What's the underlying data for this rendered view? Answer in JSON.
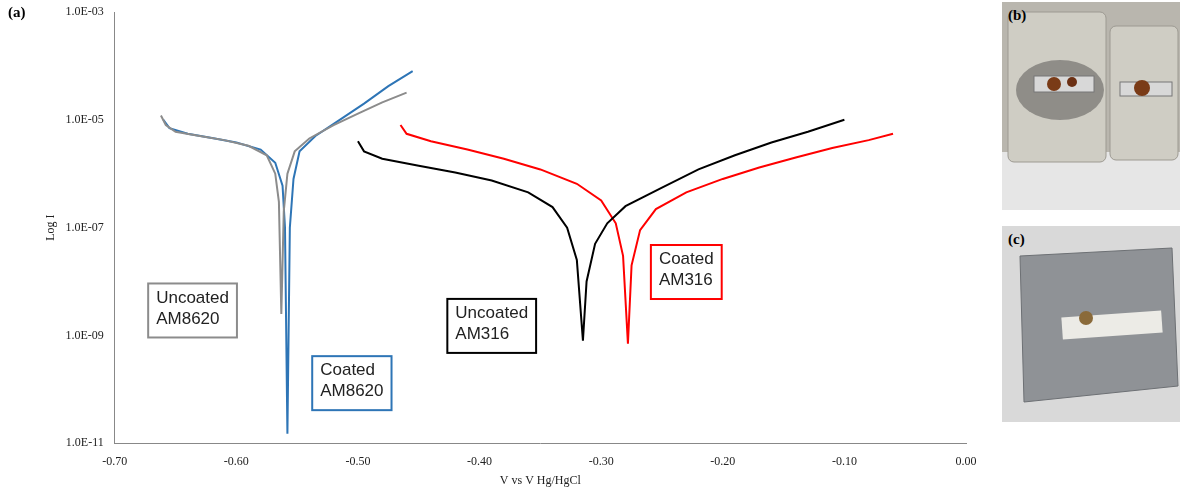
{
  "chart_data": {
    "type": "line",
    "panel_label": "(a)",
    "x_label": "V vs V Hg/HgCl",
    "y_label": "Log I",
    "xlim": [
      -0.7,
      0
    ],
    "xticks": [
      {
        "value": -0.7,
        "label": "-0.70"
      },
      {
        "value": -0.6,
        "label": "-0.60"
      },
      {
        "value": -0.5,
        "label": "-0.50"
      },
      {
        "value": -0.4,
        "label": "-0.40"
      },
      {
        "value": -0.3,
        "label": "-0.30"
      },
      {
        "value": -0.2,
        "label": "-0.20"
      },
      {
        "value": -0.1,
        "label": "-0.10"
      },
      {
        "value": 0,
        "label": "0.00"
      }
    ],
    "ylim": [
      1e-11,
      0.001
    ],
    "yticks": [
      {
        "value": 1e-11,
        "label": "1.0E-11"
      },
      {
        "value": 1e-09,
        "label": "1.0E-09"
      },
      {
        "value": 1e-07,
        "label": "1.0E-07"
      },
      {
        "value": 1e-05,
        "label": "1.0E-05"
      },
      {
        "value": 0.001,
        "label": "1.0E-03"
      }
    ],
    "log": "y",
    "grid": false,
    "series": [
      {
        "name": "Uncoated AM8620",
        "color": "#8c8c8c",
        "x": [
          -0.662,
          -0.658,
          -0.65,
          -0.63,
          -0.61,
          -0.59,
          -0.575,
          -0.568,
          -0.565,
          -0.563,
          -0.561,
          -0.558,
          -0.552,
          -0.54,
          -0.52,
          -0.5,
          -0.48,
          -0.46
        ],
        "values": [
          1.2e-05,
          8e-06,
          6e-06,
          5e-06,
          4.2e-06,
          3.3e-06,
          2.2e-06,
          1e-06,
          3e-07,
          2.5e-09,
          2e-07,
          1e-06,
          2.6e-06,
          4.5e-06,
          8e-06,
          1.3e-05,
          2.1e-05,
          3.2e-05
        ]
      },
      {
        "name": "Coated AM8620",
        "color": "#2e75b6",
        "x": [
          -0.66,
          -0.655,
          -0.64,
          -0.62,
          -0.6,
          -0.58,
          -0.568,
          -0.562,
          -0.56,
          -0.558,
          -0.556,
          -0.553,
          -0.548,
          -0.535,
          -0.515,
          -0.495,
          -0.475,
          -0.455
        ],
        "values": [
          1e-05,
          7e-06,
          5.5e-06,
          4.6e-06,
          3.8e-06,
          2.8e-06,
          1.6e-06,
          6e-07,
          1e-07,
          1.5e-11,
          1e-07,
          8e-07,
          2.6e-06,
          5e-06,
          1e-05,
          2e-05,
          4.2e-05,
          8e-05
        ]
      },
      {
        "name": "Uncoated AM316",
        "color": "#000000",
        "x": [
          -0.5,
          -0.495,
          -0.48,
          -0.45,
          -0.42,
          -0.39,
          -0.36,
          -0.34,
          -0.328,
          -0.32,
          -0.315,
          -0.312,
          -0.305,
          -0.295,
          -0.28,
          -0.25,
          -0.22,
          -0.19,
          -0.16,
          -0.13,
          -0.1
        ],
        "values": [
          4e-06,
          2.6e-06,
          1.9e-06,
          1.4e-06,
          1.05e-06,
          7.5e-07,
          4.5e-07,
          2.4e-07,
          1e-07,
          2.5e-08,
          8e-10,
          1e-08,
          5e-08,
          1.2e-07,
          2.5e-07,
          5.5e-07,
          1.2e-06,
          2.2e-06,
          3.8e-06,
          6e-06,
          1e-05
        ]
      },
      {
        "name": "Coated AM316",
        "color": "#ff0000",
        "x": [
          -0.465,
          -0.46,
          -0.44,
          -0.41,
          -0.38,
          -0.35,
          -0.32,
          -0.3,
          -0.288,
          -0.282,
          -0.278,
          -0.275,
          -0.268,
          -0.255,
          -0.23,
          -0.2,
          -0.17,
          -0.14,
          -0.11,
          -0.08,
          -0.06
        ],
        "values": [
          8e-06,
          5.5e-06,
          4e-06,
          2.8e-06,
          1.9e-06,
          1.2e-06,
          6.5e-07,
          3.2e-07,
          1.2e-07,
          3e-08,
          7e-10,
          2e-08,
          9e-08,
          2.2e-07,
          4.5e-07,
          8e-07,
          1.3e-06,
          2e-06,
          3e-06,
          4.2e-06,
          5.5e-06
        ]
      }
    ],
    "annotations": [
      {
        "text": "Uncoated AM8620",
        "x": -0.636,
        "y": 2.9e-09,
        "color": "#8c8c8c"
      },
      {
        "text": "Coated AM8620",
        "x": -0.505,
        "y": 1.3e-10,
        "color": "#2e75b6"
      },
      {
        "text": "Uncoated AM316",
        "x": -0.39,
        "y": 1.5e-09,
        "color": "#000000"
      },
      {
        "text": "Coated AM316",
        "x": -0.23,
        "y": 1.5e-08,
        "color": "#ff0000"
      }
    ]
  },
  "photos": [
    {
      "label": "(b)"
    },
    {
      "label": "(c)"
    }
  ]
}
